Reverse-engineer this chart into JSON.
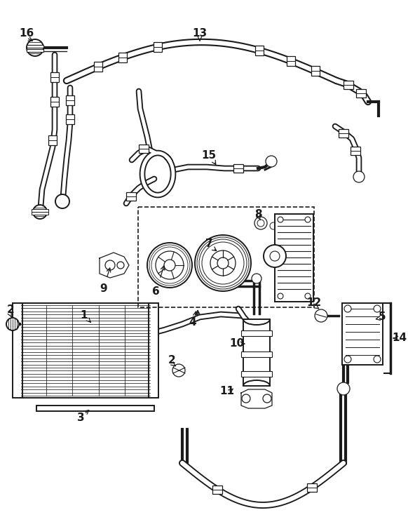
{
  "bg_color": "#ffffff",
  "line_color": "#1a1a1a",
  "figsize": [
    5.82,
    7.54
  ],
  "dpi": 100,
  "lw_hose": 2.2,
  "lw_part": 1.4,
  "lw_thin": 0.9
}
